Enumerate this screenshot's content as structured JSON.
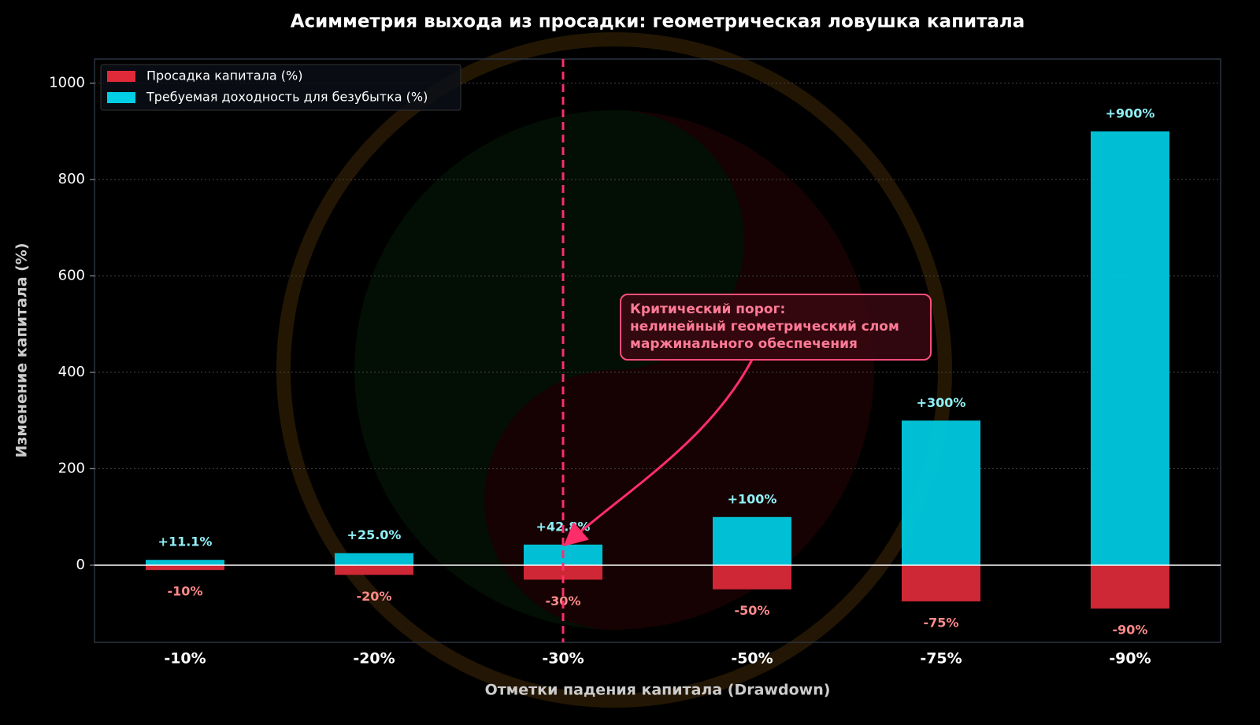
{
  "chart_data": {
    "type": "bar",
    "title": "Асимметрия выхода из просадки: геометрическая ловушка капитала",
    "x_label": "Отметки падения капитала (Drawdown)",
    "y_label": "Изменение капитала (%)",
    "categories": [
      "-10%",
      "-20%",
      "-30%",
      "-50%",
      "-75%",
      "-90%"
    ],
    "series": [
      {
        "name": "Просадка капитала (%)",
        "color": "#e02a3a",
        "values": [
          -10,
          -20,
          -30,
          -50,
          -75,
          -90
        ],
        "value_labels": [
          "-10%",
          "-20%",
          "-30%",
          "-50%",
          "-75%",
          "-90%"
        ]
      },
      {
        "name": "Требуемая доходность для безубытка (%)",
        "color": "#00cfe6",
        "values": [
          11.1,
          25.0,
          42.8,
          100,
          300,
          900
        ],
        "value_labels": [
          "+11.1%",
          "+25.0%",
          "+42.8%",
          "+100%",
          "+300%",
          "+900%"
        ]
      }
    ],
    "ylim": [
      -160,
      1050
    ],
    "yticks": [
      0,
      200,
      400,
      600,
      800,
      1000
    ],
    "grid": true,
    "legend": "upper left",
    "vline_index": 2,
    "annotation": [
      "Критический порог:",
      "нелинейный геометрический слом",
      "маржинального обеспечения"
    ]
  }
}
